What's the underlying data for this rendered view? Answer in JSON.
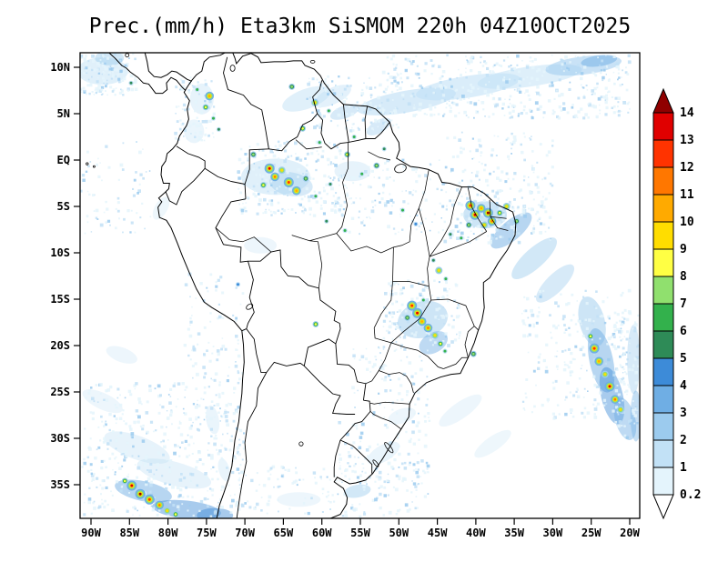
{
  "title": "Prec.(mm/h) Eta3km SiSMOM 220h 04Z10OCT2025",
  "chart_data": {
    "type": "heatmap",
    "title": "Prec.(mm/h) Eta3km SiSMOM 220h 04Z10OCT2025",
    "variable": "Precipitation",
    "units": "mm/h",
    "model": "Eta3km SiSMOM",
    "forecast_hour": "220h",
    "valid_time": "04Z10OCT2025",
    "x_ticks": [
      "90W",
      "85W",
      "80W",
      "75W",
      "70W",
      "65W",
      "60W",
      "55W",
      "50W",
      "45W",
      "40W",
      "35W",
      "30W",
      "25W",
      "20W"
    ],
    "x_tick_lons": [
      -90,
      -85,
      -80,
      -75,
      -70,
      -65,
      -60,
      -55,
      -50,
      -45,
      -40,
      -35,
      -30,
      -25,
      -20
    ],
    "y_ticks": [
      "10N",
      "5N",
      "EQ",
      "5S",
      "10S",
      "15S",
      "20S",
      "25S",
      "30S",
      "35S"
    ],
    "y_tick_lats": [
      10,
      5,
      0,
      -5,
      -10,
      -15,
      -20,
      -25,
      -30,
      -35
    ],
    "lon_range": [
      -91.4,
      -18.7
    ],
    "lat_range": [
      -38.6,
      11.6
    ],
    "grid": false,
    "colorbar": {
      "position": "right",
      "levels": [
        0.2,
        1,
        2,
        3,
        4,
        5,
        6,
        7,
        8,
        9,
        10,
        11,
        12,
        13,
        14
      ],
      "labels_top_to_bottom": [
        "14",
        "13",
        "12",
        "11",
        "10",
        "9",
        "8",
        "7",
        "6",
        "5",
        "4",
        "3",
        "2",
        "1",
        "0.2"
      ],
      "colors_low_to_high": [
        "#FFFFFF",
        "#E4F4FC",
        "#C2E1F6",
        "#9CCBEE",
        "#6FAEE4",
        "#3D8BD8",
        "#2E8B57",
        "#33B14C",
        "#90E06E",
        "#FFFF44",
        "#FFDD00",
        "#FFAA00",
        "#FF7700",
        "#FF3300",
        "#E00000",
        "#900000"
      ]
    }
  },
  "map_overlay": {
    "patches": [
      [
        -49,
        6.3,
        55,
        12,
        -10,
        1,
        0.65
      ],
      [
        -41,
        7.9,
        58,
        12,
        -9,
        1,
        0.6
      ],
      [
        -33,
        9.0,
        58,
        11,
        -8,
        1,
        0.55
      ],
      [
        -26,
        10.2,
        42,
        10,
        -7,
        2,
        0.55
      ],
      [
        -24,
        10.7,
        20,
        6,
        -8,
        3,
        0.5
      ],
      [
        -88.5,
        9.6,
        28,
        15,
        0,
        1,
        0.5
      ],
      [
        -87.6,
        11.0,
        16,
        8,
        0,
        2,
        0.45
      ],
      [
        -62,
        6.6,
        28,
        11,
        -20,
        1,
        0.5
      ],
      [
        -58.6,
        6.9,
        22,
        9,
        -25,
        1,
        0.45
      ],
      [
        -57,
        5.2,
        17,
        7,
        -20,
        2,
        0.4
      ],
      [
        -52.6,
        3.6,
        15,
        7,
        -30,
        2,
        0.4
      ],
      [
        -66,
        -1.8,
        38,
        20,
        0,
        1,
        0.5
      ],
      [
        -64,
        -2.6,
        24,
        13,
        10,
        2,
        0.4
      ],
      [
        -56,
        -1.2,
        20,
        11,
        0,
        1,
        0.4
      ],
      [
        -68,
        -9.2,
        18,
        9,
        0,
        1,
        0.3
      ],
      [
        -38.8,
        -5.9,
        24,
        15,
        0,
        2,
        0.5
      ],
      [
        -35.4,
        -7.6,
        28,
        11,
        -40,
        3,
        0.5
      ],
      [
        -32.4,
        -10.6,
        32,
        11,
        -42,
        2,
        0.45
      ],
      [
        -29.7,
        -13.3,
        28,
        10,
        -45,
        2,
        0.4
      ],
      [
        -46.9,
        -17.2,
        28,
        20,
        -15,
        2,
        0.5
      ],
      [
        -45.5,
        -19.7,
        17,
        11,
        -30,
        3,
        0.45
      ],
      [
        -24.9,
        -17.4,
        14,
        28,
        -14,
        2,
        0.5
      ],
      [
        -23.7,
        -21.6,
        13,
        36,
        -12,
        3,
        0.5
      ],
      [
        -22.3,
        -25.4,
        12,
        32,
        -13,
        4,
        0.45
      ],
      [
        -20.6,
        -27.9,
        11,
        24,
        -15,
        3,
        0.45
      ],
      [
        -19.5,
        -21.5,
        7,
        38,
        0,
        2,
        0.4
      ],
      [
        -19.2,
        -27.6,
        6,
        28,
        0,
        3,
        0.4
      ],
      [
        -84,
        -31,
        38,
        13,
        20,
        1,
        0.4
      ],
      [
        -79.2,
        -33.8,
        42,
        13,
        15,
        1,
        0.4
      ],
      [
        -83.2,
        -35.7,
        32,
        11,
        12,
        3,
        0.5
      ],
      [
        -77.6,
        -37.7,
        38,
        10,
        6,
        4,
        0.45
      ],
      [
        -73.9,
        -38.3,
        20,
        8,
        0,
        4,
        0.45
      ],
      [
        -88.5,
        -26,
        24,
        9,
        25,
        1,
        0.3
      ],
      [
        -86,
        -21,
        18,
        8,
        20,
        1,
        0.3
      ],
      [
        -74.2,
        -28,
        16,
        7,
        80,
        1,
        0.35
      ],
      [
        -72.7,
        -33.4,
        13,
        6,
        75,
        1,
        0.35
      ],
      [
        -52,
        -31.6,
        20,
        9,
        -30,
        1,
        0.35
      ],
      [
        -49.6,
        -27.6,
        16,
        8,
        -20,
        1,
        0.3
      ],
      [
        -55.4,
        -35.7,
        15,
        7,
        -10,
        2,
        0.45
      ],
      [
        -63,
        -36.6,
        24,
        8,
        0,
        1,
        0.3
      ],
      [
        -42,
        -27,
        28,
        9,
        -35,
        1,
        0.3
      ],
      [
        -37.8,
        -30.6,
        24,
        8,
        -35,
        1,
        0.28
      ],
      [
        -75.6,
        6.6,
        13,
        17,
        0,
        1,
        0.4
      ],
      [
        -76.6,
        3.1,
        11,
        13,
        0,
        1,
        0.35
      ],
      [
        -80.9,
        -5.2,
        14,
        7,
        -60,
        1,
        0.28
      ]
    ],
    "cells": [
      [
        -84.8,
        8.3,
        5
      ],
      [
        -76.2,
        7.6,
        6
      ],
      [
        -74.6,
        6.9,
        10
      ],
      [
        -75.1,
        5.7,
        8
      ],
      [
        -74.1,
        4.5,
        6
      ],
      [
        -73.4,
        3.3,
        5
      ],
      [
        -63.9,
        7.9,
        7
      ],
      [
        -60.9,
        6.2,
        9
      ],
      [
        -59.1,
        5.3,
        6
      ],
      [
        -62.5,
        3.4,
        8
      ],
      [
        -60.3,
        1.9,
        6
      ],
      [
        -68.9,
        0.6,
        7
      ],
      [
        -66.8,
        -0.9,
        13
      ],
      [
        -66.1,
        -1.8,
        11
      ],
      [
        -65.2,
        -1.1,
        9
      ],
      [
        -64.3,
        -2.4,
        12
      ],
      [
        -67.6,
        -2.7,
        8
      ],
      [
        -63.3,
        -3.3,
        10
      ],
      [
        -62.1,
        -2.0,
        7
      ],
      [
        -60.8,
        -3.9,
        6
      ],
      [
        -58.9,
        -2.6,
        5
      ],
      [
        -56.7,
        0.6,
        8
      ],
      [
        -55.8,
        2.5,
        6
      ],
      [
        -54.8,
        -1.5,
        6
      ],
      [
        -52.9,
        -0.6,
        7
      ],
      [
        -51.9,
        1.2,
        5
      ],
      [
        -59.4,
        -6.6,
        5
      ],
      [
        -57.0,
        -7.6,
        6
      ],
      [
        -49.5,
        -5.4,
        6
      ],
      [
        -47.8,
        -6.9,
        4
      ],
      [
        -43.3,
        -8.0,
        5
      ],
      [
        -41.9,
        -8.4,
        6
      ],
      [
        -40.7,
        -4.9,
        12
      ],
      [
        -40.1,
        -5.9,
        13
      ],
      [
        -39.3,
        -5.2,
        10
      ],
      [
        -38.4,
        -5.7,
        14
      ],
      [
        -37.9,
        -6.6,
        11
      ],
      [
        -38.9,
        -7.0,
        9
      ],
      [
        -36.9,
        -5.7,
        8
      ],
      [
        -36.0,
        -5.0,
        9
      ],
      [
        -34.7,
        -6.6,
        7
      ],
      [
        -40.9,
        -7.0,
        7
      ],
      [
        -44.8,
        -11.9,
        9
      ],
      [
        -43.9,
        -12.8,
        6
      ],
      [
        -45.5,
        -10.8,
        5
      ],
      [
        -48.3,
        -15.7,
        12
      ],
      [
        -47.6,
        -16.5,
        13
      ],
      [
        -47.0,
        -17.4,
        10
      ],
      [
        -46.2,
        -18.1,
        11
      ],
      [
        -45.3,
        -18.9,
        9
      ],
      [
        -44.6,
        -19.8,
        8
      ],
      [
        -48.9,
        -17.0,
        7
      ],
      [
        -46.8,
        -15.1,
        6
      ],
      [
        -44.0,
        -20.6,
        6
      ],
      [
        -40.3,
        -20.9,
        7
      ],
      [
        -60.8,
        -17.7,
        8
      ],
      [
        -70.9,
        -13.4,
        4
      ],
      [
        -24.6,
        -20.3,
        12
      ],
      [
        -24.0,
        -21.7,
        10
      ],
      [
        -23.2,
        -23.1,
        9
      ],
      [
        -22.6,
        -24.4,
        13
      ],
      [
        -21.9,
        -25.8,
        11
      ],
      [
        -21.2,
        -26.9,
        9
      ],
      [
        -25.1,
        -19.0,
        8
      ],
      [
        -84.7,
        -35.1,
        13
      ],
      [
        -83.6,
        -36.0,
        14
      ],
      [
        -82.4,
        -36.6,
        12
      ],
      [
        -81.1,
        -37.2,
        11
      ],
      [
        -80.1,
        -37.8,
        9
      ],
      [
        -85.6,
        -34.6,
        8
      ],
      [
        -79.0,
        -38.2,
        8
      ]
    ],
    "speckle_regions": [
      [
        -91.3,
        7.0,
        -84.0,
        11.5,
        150,
        11
      ],
      [
        -79,
        2,
        -74,
        9,
        90,
        22
      ],
      [
        -52,
        4.5,
        -20,
        11.3,
        420,
        33
      ],
      [
        -62,
        3,
        -50,
        9,
        150,
        44
      ],
      [
        -71,
        -6,
        -57,
        2,
        240,
        55
      ],
      [
        -57,
        -8,
        -44,
        0,
        120,
        66
      ],
      [
        -44,
        -9,
        -30,
        -2,
        200,
        77
      ],
      [
        -52,
        -20,
        -42,
        -13,
        150,
        88
      ],
      [
        -34,
        -28,
        -20,
        -14,
        220,
        99
      ],
      [
        -58,
        -35,
        -46,
        -26,
        130,
        111
      ],
      [
        -91.3,
        -38.5,
        -70,
        -24,
        480,
        122
      ],
      [
        -78,
        -24,
        -70,
        -12,
        90,
        133
      ],
      [
        -70,
        -38.5,
        -46,
        -33,
        150,
        144
      ],
      [
        -22,
        -30,
        -18.8,
        -16,
        110,
        155
      ],
      [
        -44,
        -2,
        -30,
        3,
        80,
        166
      ],
      [
        -91.3,
        -8,
        -82,
        2,
        70,
        177
      ],
      [
        -56,
        -26,
        -46,
        -20,
        70,
        188
      ]
    ]
  }
}
